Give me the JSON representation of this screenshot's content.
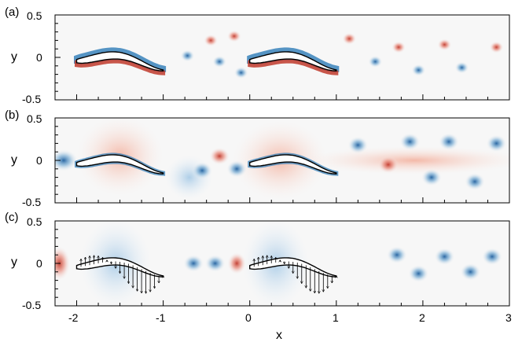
{
  "chart_data": [
    {
      "type": "contour",
      "panel_label": "(a)",
      "xlabel": "",
      "ylabel": "y",
      "xlim": [
        -2.25,
        3.0
      ],
      "ylim": [
        -0.5,
        0.5
      ],
      "yticks": [
        "0.5",
        "0",
        "-0.5"
      ],
      "bodies": [
        {
          "name": "front fish",
          "head_x": -2.0,
          "tail_x": -1.0
        },
        {
          "name": "rear fish",
          "head_x": 0.0,
          "tail_x": 1.0
        }
      ],
      "vortices": [
        {
          "x": -0.72,
          "y": 0.02,
          "sign": "neg"
        },
        {
          "x": -0.45,
          "y": 0.2,
          "sign": "pos"
        },
        {
          "x": -0.35,
          "y": -0.05,
          "sign": "neg"
        },
        {
          "x": -0.18,
          "y": 0.25,
          "sign": "pos"
        },
        {
          "x": -0.1,
          "y": -0.18,
          "sign": "neg"
        },
        {
          "x": 1.15,
          "y": 0.22,
          "sign": "pos"
        },
        {
          "x": 1.45,
          "y": -0.05,
          "sign": "neg"
        },
        {
          "x": 1.72,
          "y": 0.12,
          "sign": "pos"
        },
        {
          "x": 1.95,
          "y": -0.15,
          "sign": "neg"
        },
        {
          "x": 2.25,
          "y": 0.15,
          "sign": "pos"
        },
        {
          "x": 2.45,
          "y": -0.12,
          "sign": "neg"
        },
        {
          "x": 2.85,
          "y": 0.12,
          "sign": "pos"
        }
      ]
    },
    {
      "type": "contour",
      "panel_label": "(b)",
      "xlabel": "",
      "ylabel": "y",
      "xlim": [
        -2.25,
        3.0
      ],
      "ylim": [
        -0.5,
        0.5
      ],
      "yticks": [
        "0.5",
        "0",
        "-0.5"
      ],
      "bodies": [
        {
          "name": "front fish",
          "head_x": -2.0,
          "tail_x": -1.0
        },
        {
          "name": "rear fish",
          "head_x": 0.0,
          "tail_x": 1.0
        }
      ],
      "vortices": [
        {
          "x": -0.55,
          "y": -0.12,
          "sign": "neg"
        },
        {
          "x": -0.35,
          "y": 0.05,
          "sign": "pos"
        },
        {
          "x": -0.15,
          "y": -0.1,
          "sign": "neg"
        },
        {
          "x": 1.25,
          "y": 0.18,
          "sign": "neg"
        },
        {
          "x": 1.6,
          "y": -0.05,
          "sign": "pos"
        },
        {
          "x": 1.85,
          "y": 0.22,
          "sign": "neg"
        },
        {
          "x": 2.1,
          "y": -0.2,
          "sign": "neg"
        },
        {
          "x": 2.3,
          "y": 0.22,
          "sign": "neg"
        },
        {
          "x": 2.6,
          "y": -0.25,
          "sign": "neg"
        },
        {
          "x": 2.85,
          "y": 0.2,
          "sign": "neg"
        }
      ]
    },
    {
      "type": "contour-vector",
      "panel_label": "(c)",
      "xlabel": "x",
      "ylabel": "y",
      "xlim": [
        -2.25,
        3.0
      ],
      "ylim": [
        -0.5,
        0.5
      ],
      "xticks": [
        "-2",
        "-1",
        "0",
        "1",
        "2",
        "3"
      ],
      "yticks": [
        "0.5",
        "0",
        "-0.5"
      ],
      "bodies": [
        {
          "name": "front fish",
          "head_x": -2.0,
          "tail_x": -1.0
        },
        {
          "name": "rear fish",
          "head_x": 0.0,
          "tail_x": 1.0
        }
      ],
      "vortices": [
        {
          "x": -0.65,
          "y": 0.0,
          "sign": "neg"
        },
        {
          "x": -0.4,
          "y": 0.0,
          "sign": "neg"
        },
        {
          "x": 1.7,
          "y": 0.1,
          "sign": "neg"
        },
        {
          "x": 1.95,
          "y": -0.12,
          "sign": "neg"
        },
        {
          "x": 2.25,
          "y": 0.08,
          "sign": "neg"
        },
        {
          "x": 2.55,
          "y": -0.1,
          "sign": "neg"
        },
        {
          "x": 2.8,
          "y": 0.08,
          "sign": "neg"
        }
      ]
    }
  ],
  "colors": {
    "positive": "#d7191c",
    "negative": "#2c7bb6",
    "background": "#f6f6f6"
  }
}
